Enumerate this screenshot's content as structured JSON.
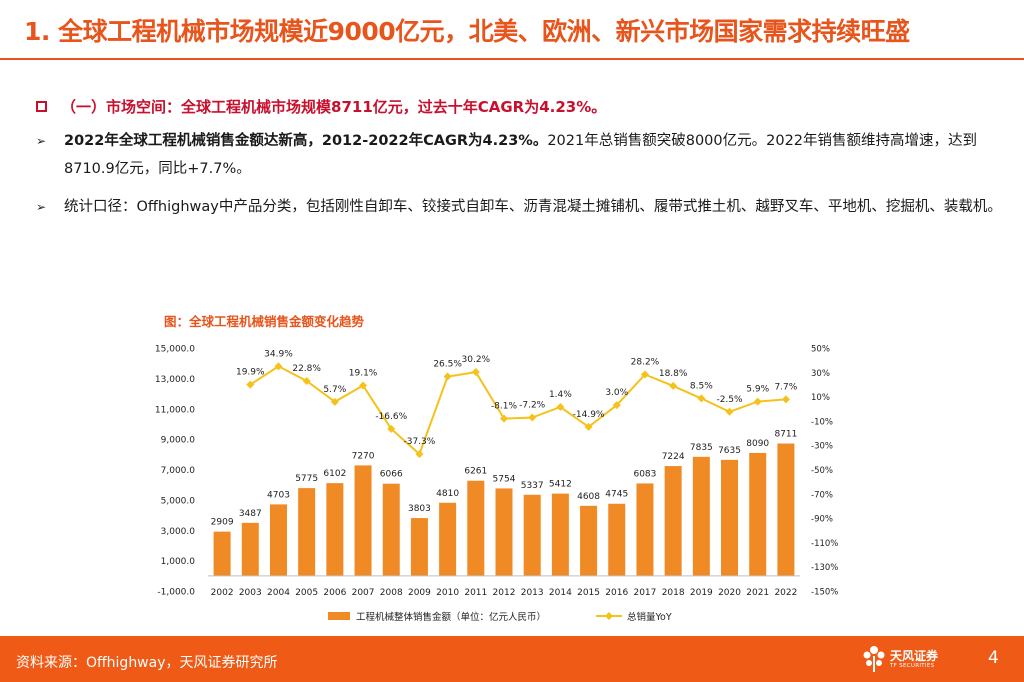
{
  "header": {
    "title": "1. 全球工程机械市场规模近9000亿元，北美、欧洲、新兴市场国家需求持续旺盛"
  },
  "section": {
    "label": "（一）市场空间：全球工程机械市场规模8711亿元，过去十年CAGR为4.23%。"
  },
  "bullets": [
    {
      "bold": "2022年全球工程机械销售金额达新高，2012-2022年CAGR为4.23%。",
      "text": "2021年总销售额突破8000亿元。2022年销售额维持高增速，达到8710.9亿元，同比+7.7%。"
    },
    {
      "bold": "",
      "text": "统计口径：Offhighway中产品分类，包括刚性自卸车、铰接式自卸车、沥青混凝土摊铺机、履带式推土机、越野叉车、平地机、挖掘机、装载机。"
    }
  ],
  "chart_title": "图：全球工程机械销售金额变化趋势",
  "chart_data": {
    "type": "bar+line",
    "categories": [
      "2002",
      "2003",
      "2004",
      "2005",
      "2006",
      "2007",
      "2008",
      "2009",
      "2010",
      "2011",
      "2012",
      "2013",
      "2014",
      "2015",
      "2016",
      "2017",
      "2018",
      "2019",
      "2020",
      "2021",
      "2022"
    ],
    "series": [
      {
        "name": "工程机械整体销售金额（单位：亿元人民币）",
        "type": "bar",
        "axis": "left",
        "values": [
          2909,
          3487,
          4703,
          5775,
          6102,
          7270,
          6066,
          3803,
          4810,
          6261,
          5754,
          5337,
          5412,
          4608,
          4745,
          6083,
          7224,
          7835,
          7635,
          8090,
          8711
        ],
        "labels": [
          "2909",
          "3487",
          "4703",
          "5775",
          "6102",
          "7270",
          "6066",
          "3803",
          "4810",
          "6261",
          "5754",
          "5337",
          "5412",
          "4608",
          "4745",
          "6083",
          "7224",
          "7835",
          "7635",
          "8090",
          "8711"
        ],
        "color": "#f08a24"
      },
      {
        "name": "总销量YoY",
        "type": "line",
        "axis": "right",
        "values": [
          null,
          19.9,
          34.9,
          22.8,
          5.7,
          19.1,
          -16.6,
          -37.3,
          26.5,
          30.2,
          -8.1,
          -7.2,
          1.4,
          -14.9,
          3.0,
          28.2,
          18.8,
          8.5,
          -2.5,
          5.9,
          7.7
        ],
        "labels": [
          "",
          "19.9%",
          "34.9%",
          "22.8%",
          "5.7%",
          "19.1%",
          "-16.6%",
          "-37.3%",
          "26.5%",
          "30.2%",
          "-8.1%",
          "-7.2%",
          "1.4%",
          "-14.9%",
          "3.0%",
          "28.2%",
          "18.8%",
          "8.5%",
          "-2.5%",
          "5.9%",
          "7.7%"
        ],
        "color": "#f5c21b"
      }
    ],
    "left_axis": {
      "min": -1000,
      "max": 15000,
      "ticks": [
        -1000,
        1000,
        3000,
        5000,
        7000,
        9000,
        11000,
        13000,
        15000
      ],
      "tick_labels": [
        "-1,000.0",
        "1,000.0",
        "3,000.0",
        "5,000.0",
        "7,000.0",
        "9,000.0",
        "11,000.0",
        "13,000.0",
        "15,000.0"
      ]
    },
    "right_axis": {
      "min": -150,
      "max": 50,
      "ticks": [
        -150,
        -130,
        -110,
        -90,
        -70,
        -50,
        -30,
        -10,
        10,
        30,
        50
      ],
      "tick_labels": [
        "-150%",
        "-130%",
        "-110%",
        "-90%",
        "-70%",
        "-50%",
        "-30%",
        "-10%",
        "10%",
        "30%",
        "50%"
      ]
    },
    "legend": {
      "position": "bottom",
      "items": [
        "工程机械整体销售金额（单位：亿元人民币）",
        "总销量YoY"
      ]
    }
  },
  "footer": {
    "source": "资料来源：Offhighway，天风证券研究所",
    "logo_name": "天风证券",
    "logo_sub": "TF SECURITIES",
    "page": "4"
  },
  "colors": {
    "accent": "#e8551c",
    "section_red": "#c8102e",
    "bar": "#f08a24",
    "line": "#f5c21b",
    "footer": "#ef5a16"
  }
}
